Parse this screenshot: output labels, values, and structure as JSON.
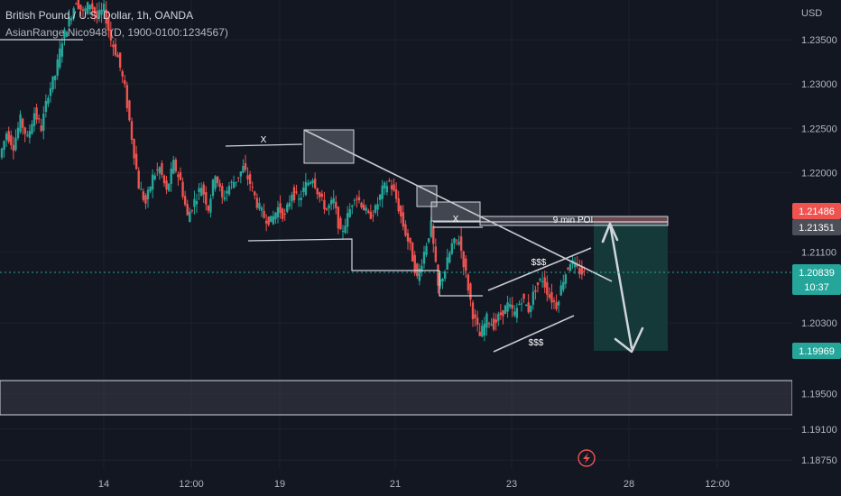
{
  "header": {
    "symbol_line": "British Pound / U.S. Dollar, 1h, OANDA",
    "indicator_line": "AsianRange Nico948 (D, 1900-0100:1234567)"
  },
  "colors": {
    "background": "#131722",
    "bull": "#26a69a",
    "bear": "#ef5350",
    "grid": "#1e222d",
    "tp_zone": "#143b3a",
    "sl_zone": "#5c2b30"
  },
  "icons": [
    "tradingview-lightning-icon"
  ],
  "chart_data": {
    "type": "candlestick",
    "y_unit": "USD",
    "ylim": [
      1.1865,
      1.2395
    ],
    "y_ticks": [
      "1.23500",
      "1.23000",
      "1.22500",
      "1.22000",
      "1.21100",
      "1.20300",
      "1.19500",
      "1.19100",
      "1.18750"
    ],
    "x_ticks": [
      "14",
      "12:00",
      "19",
      "21",
      "23",
      "28",
      "12:00"
    ],
    "price_tags": {
      "sl": "1.21486",
      "entry": "1.21351",
      "last": "1.20839",
      "countdown": "10:37",
      "tp": "1.19969"
    },
    "annotations": {
      "x_label_1": "X",
      "x_label_2": "X",
      "poi_label": "9 min POI",
      "liquidity_top": "$$$",
      "liquidity_bottom": "$$$"
    },
    "price_path": [
      1.2217,
      1.2245,
      1.223,
      1.226,
      1.2238,
      1.2268,
      1.225,
      1.229,
      1.231,
      1.235,
      1.2372,
      1.2395,
      1.238,
      1.2392,
      1.2375,
      1.2385,
      1.235,
      1.233,
      1.2295,
      1.224,
      1.2185,
      1.2165,
      1.2195,
      1.2205,
      1.2178,
      1.221,
      1.219,
      1.215,
      1.2168,
      1.2185,
      1.216,
      1.22,
      1.217,
      1.2185,
      1.2192,
      1.2205,
      1.2188,
      1.2165,
      1.215,
      1.2145,
      1.216,
      1.215,
      1.2178,
      1.2168,
      1.2186,
      1.2195,
      1.2172,
      1.2158,
      1.2168,
      1.213,
      1.215,
      1.2175,
      1.2165,
      1.215,
      1.2158,
      1.218,
      1.219,
      1.217,
      1.214,
      1.2115,
      1.208,
      1.211,
      1.214,
      1.207,
      1.209,
      1.2118,
      1.2125,
      1.2085,
      1.204,
      1.2015,
      1.2035,
      1.2028,
      1.204,
      1.205,
      1.204,
      1.2058,
      1.2045,
      1.207,
      1.208,
      1.206,
      1.205,
      1.208,
      1.21,
      1.209,
      1.2085
    ]
  }
}
